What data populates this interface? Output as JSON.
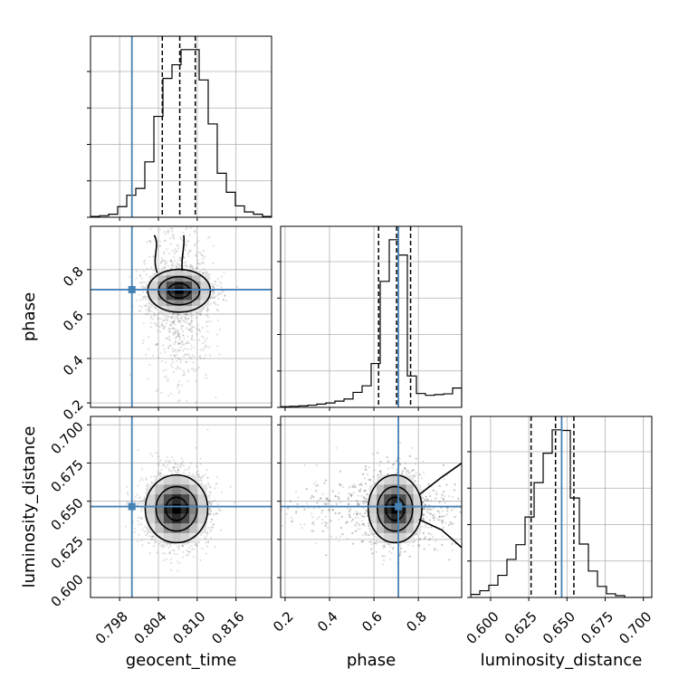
{
  "chart_data": {
    "type": "corner",
    "parameters": [
      "geocent_time",
      "phase",
      "luminosity_distance"
    ],
    "axis_labels": {
      "geocent_time": "geocent_time",
      "phase": "phase",
      "luminosity_distance": "luminosity_distance"
    },
    "ranges": {
      "geocent_time": [
        0.7935,
        0.8215
      ],
      "phase": [
        0.18,
        0.995
      ],
      "luminosity_distance": [
        0.587,
        0.7055
      ]
    },
    "ticks": {
      "geocent_time": [
        "0.798",
        "0.804",
        "0.810",
        "0.816"
      ],
      "phase": [
        "0.2",
        "0.4",
        "0.6",
        "0.8"
      ],
      "phase_y": [
        "0.2",
        "0.4",
        "0.6",
        "0.8"
      ],
      "luminosity_distance": [
        "0.600",
        "0.625",
        "0.650",
        "0.675",
        "0.700"
      ]
    },
    "truths": {
      "geocent_time": 0.7999,
      "phase": 0.71,
      "luminosity_distance": 0.6465,
      "color": "#4682b4"
    },
    "quantiles": {
      "geocent_time": [
        0.8046,
        0.8073,
        0.8097
      ],
      "phase": [
        0.621,
        0.702,
        0.765
      ],
      "luminosity_distance": [
        0.6265,
        0.6425,
        0.6545
      ]
    },
    "histograms": {
      "geocent_time": {
        "edges_start": 0.7935,
        "bin_width": 0.0014,
        "counts": [
          1,
          2,
          4,
          14,
          29,
          38,
          73,
          133,
          183,
          201,
          221,
          221,
          181,
          123,
          58,
          33,
          15,
          7,
          4,
          1
        ]
      },
      "phase": {
        "edges_start": 0.18,
        "bin_width": 0.04075,
        "counts": [
          2,
          3,
          4,
          6,
          9,
          12,
          17,
          23,
          41,
          59,
          120,
          345,
          459,
          417,
          86,
          38,
          33,
          35,
          37,
          53
        ]
      },
      "luminosity_distance": {
        "edges_start": 0.587,
        "bin_width": 0.005925,
        "counts": [
          5,
          11,
          20,
          36,
          62,
          86,
          131,
          187,
          235,
          273,
          272,
          162,
          87,
          43,
          18,
          6,
          3,
          0,
          0,
          0
        ]
      }
    },
    "posterior_2d": {
      "geocent_time_vs_phase": {
        "center": [
          0.8072,
          0.705
        ],
        "spread": [
          0.0024,
          0.05
        ],
        "tail_phase_low": 0.42
      },
      "geocent_time_vs_luminosity_distance": {
        "center": [
          0.8068,
          0.645
        ],
        "spread": [
          0.0024,
          0.0115
        ]
      },
      "phase_vs_luminosity_distance": {
        "center": [
          0.695,
          0.645
        ],
        "spread": [
          0.06,
          0.0115
        ],
        "tail_phase_high": 0.99
      }
    },
    "grid": true
  }
}
